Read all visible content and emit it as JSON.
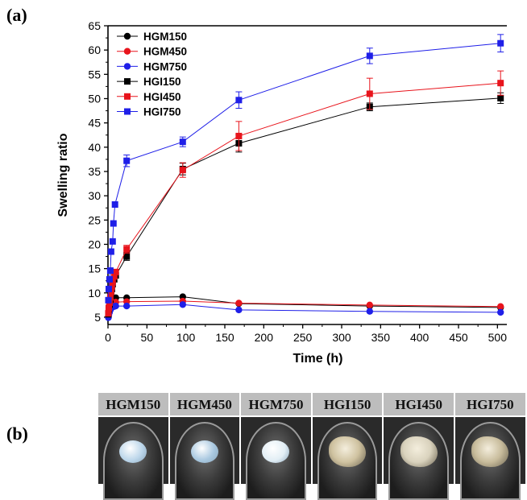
{
  "panels": {
    "a": "(a)",
    "b": "(b)"
  },
  "chart_data": {
    "type": "line",
    "xlabel": "Time (h)",
    "ylabel": "Swelling ratio",
    "xlim": [
      0,
      510
    ],
    "ylim": [
      3.5,
      65
    ],
    "xticks": [
      0,
      50,
      100,
      150,
      200,
      250,
      300,
      350,
      400,
      450,
      500
    ],
    "yticks": [
      5,
      10,
      15,
      20,
      25,
      30,
      35,
      40,
      45,
      50,
      55,
      60,
      65
    ],
    "legend_position": "top-left",
    "grid": false,
    "series": [
      {
        "name": "HGM150",
        "marker": "circle",
        "color": "#000000",
        "points": [
          [
            0.5,
            5.2
          ],
          [
            1,
            6
          ],
          [
            2,
            7
          ],
          [
            3,
            7.8
          ],
          [
            4,
            8.2
          ],
          [
            5,
            8.5
          ],
          [
            6,
            8.7
          ],
          [
            8,
            8.9
          ],
          [
            10,
            9
          ],
          [
            24,
            9
          ],
          [
            96,
            9.2
          ],
          [
            168,
            7.8
          ],
          [
            336,
            7.3
          ],
          [
            504,
            7
          ]
        ]
      },
      {
        "name": "HGM450",
        "marker": "circle",
        "color": "#e8141c",
        "points": [
          [
            0.5,
            5
          ],
          [
            1,
            5.6
          ],
          [
            2,
            6.3
          ],
          [
            3,
            6.9
          ],
          [
            4,
            7.3
          ],
          [
            5,
            7.6
          ],
          [
            6,
            7.9
          ],
          [
            8,
            8
          ],
          [
            10,
            8.1
          ],
          [
            24,
            8.2
          ],
          [
            96,
            8.3
          ],
          [
            168,
            7.9
          ],
          [
            336,
            7.5
          ],
          [
            504,
            7.2
          ]
        ]
      },
      {
        "name": "HGM750",
        "marker": "circle",
        "color": "#1f1fe8",
        "points": [
          [
            0.5,
            4.9
          ],
          [
            1,
            5.4
          ],
          [
            2,
            6
          ],
          [
            3,
            6.5
          ],
          [
            4,
            6.8
          ],
          [
            5,
            7
          ],
          [
            6,
            7.1
          ],
          [
            8,
            7.2
          ],
          [
            10,
            7.3
          ],
          [
            24,
            7.3
          ],
          [
            96,
            7.6
          ],
          [
            168,
            6.5
          ],
          [
            336,
            6.2
          ],
          [
            504,
            6
          ]
        ]
      },
      {
        "name": "HGI150",
        "marker": "square",
        "color": "#000000",
        "points": [
          [
            0.5,
            5.6
          ],
          [
            1,
            6.6
          ],
          [
            2,
            7.6
          ],
          [
            3,
            8.6
          ],
          [
            4,
            9.6
          ],
          [
            5,
            10.8
          ],
          [
            6,
            11.8
          ],
          [
            8,
            12.8
          ],
          [
            10,
            13.6
          ],
          [
            24,
            17.5
          ],
          [
            96,
            35.5
          ],
          [
            168,
            40.8
          ],
          [
            336,
            48.3
          ],
          [
            504,
            50.1
          ]
        ],
        "errors": [
          0,
          0,
          0,
          0,
          0,
          0,
          0,
          0,
          0,
          0.8,
          1.2,
          1.8,
          0.8,
          1.1
        ]
      },
      {
        "name": "HGI450",
        "marker": "square",
        "color": "#e8141c",
        "points": [
          [
            0.5,
            5.8
          ],
          [
            1,
            6.9
          ],
          [
            2,
            8
          ],
          [
            3,
            9.1
          ],
          [
            4,
            10.2
          ],
          [
            5,
            11.3
          ],
          [
            6,
            12.2
          ],
          [
            8,
            13.4
          ],
          [
            10,
            14.3
          ],
          [
            24,
            19
          ],
          [
            96,
            35.3
          ],
          [
            168,
            42.3
          ],
          [
            336,
            51
          ],
          [
            504,
            53.2
          ]
        ],
        "errors": [
          0,
          0,
          0,
          0,
          0,
          0,
          0,
          0,
          0,
          0.8,
          1.5,
          3,
          3.2,
          2.5
        ]
      },
      {
        "name": "HGI750",
        "marker": "square",
        "color": "#1f1fe8",
        "points": [
          [
            0.5,
            8.5
          ],
          [
            1,
            10.8
          ],
          [
            2,
            12.8
          ],
          [
            3,
            14.6
          ],
          [
            4,
            18.5
          ],
          [
            6,
            20.6
          ],
          [
            7,
            24.3
          ],
          [
            9,
            28.2
          ],
          [
            24,
            37.2
          ],
          [
            96,
            41.1
          ],
          [
            168,
            49.7
          ],
          [
            336,
            58.8
          ],
          [
            504,
            61.4
          ]
        ],
        "errors": [
          0,
          0,
          0,
          0,
          0,
          0,
          0,
          0,
          1.2,
          1,
          1.7,
          1.6,
          1.8
        ]
      }
    ]
  },
  "photos": [
    {
      "label": "HGM150",
      "gel_color": "#bcd6ea",
      "kind": "m"
    },
    {
      "label": "HGM450",
      "gel_color": "#a9c8e0",
      "kind": "m"
    },
    {
      "label": "HGM750",
      "gel_color": "#e2eef5",
      "kind": "m"
    },
    {
      "label": "HGI150",
      "gel_color": "#cfc2a0",
      "kind": "i"
    },
    {
      "label": "HGI450",
      "gel_color": "#d9d2bd",
      "kind": "i"
    },
    {
      "label": "HGI750",
      "gel_color": "#c8bc9c",
      "kind": "i"
    }
  ]
}
